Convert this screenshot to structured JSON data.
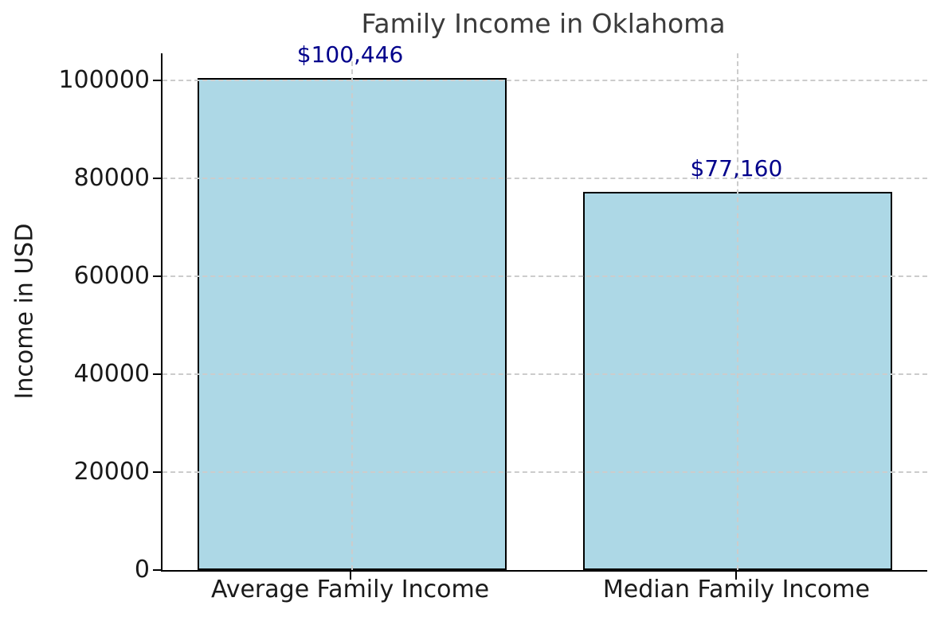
{
  "chart_data": {
    "type": "bar",
    "title": "Family Income in Oklahoma",
    "xlabel": "",
    "ylabel": "Income in USD",
    "categories": [
      "Average Family Income",
      "Median Family Income"
    ],
    "values": [
      100446,
      77160
    ],
    "value_labels": [
      "$100,446",
      "$77,160"
    ],
    "ylim": [
      0,
      105468
    ],
    "yticks": [
      0,
      20000,
      40000,
      60000,
      80000,
      100000
    ],
    "ytick_labels": [
      "0",
      "20000",
      "40000",
      "60000",
      "80000",
      "100000"
    ],
    "grid": "dashed lines at x and y ticks, drawn above bars",
    "legend": "none",
    "colors": {
      "bar_fill": "#ADD8E6",
      "bar_edge": "#000000",
      "value_label": "#00008B",
      "title": "#3B3B3B",
      "tick_label": "#1A1A1A",
      "grid_line": "#CCCCCC",
      "axis_line": "#000000",
      "background": "#FFFFFF"
    }
  }
}
